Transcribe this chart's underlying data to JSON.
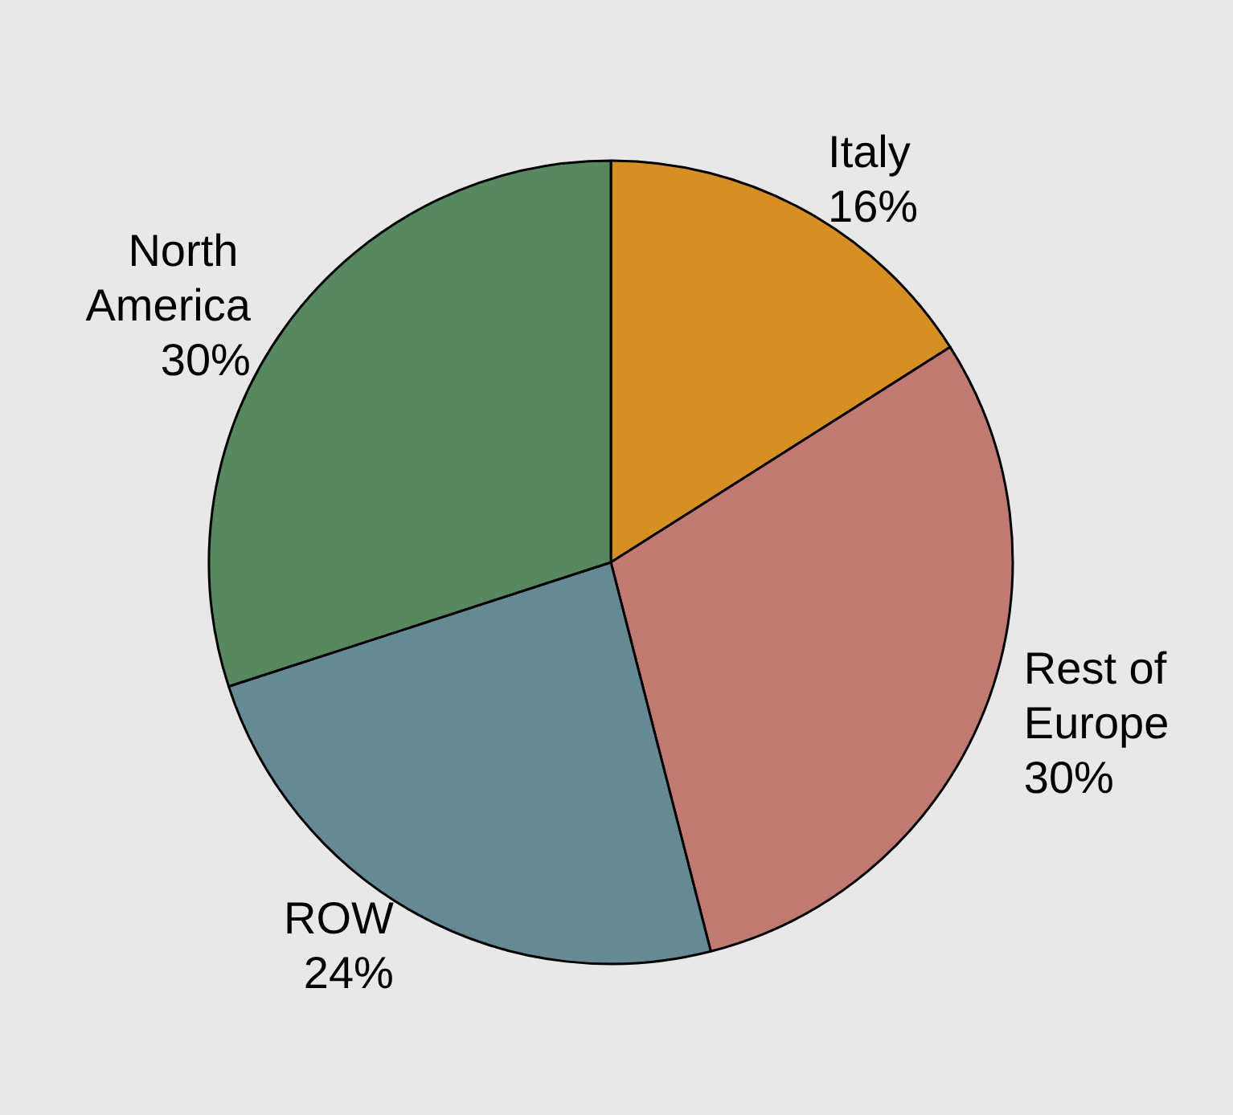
{
  "chart_data": {
    "type": "pie",
    "categories": [
      "Italy",
      "Rest of Europe",
      "ROW",
      "North America"
    ],
    "values": [
      16,
      30,
      24,
      30
    ],
    "value_labels": [
      "16%",
      "30%",
      "24%",
      "30%"
    ],
    "colors": [
      "#d68f22",
      "#c07a72",
      "#668a94",
      "#578860"
    ]
  }
}
